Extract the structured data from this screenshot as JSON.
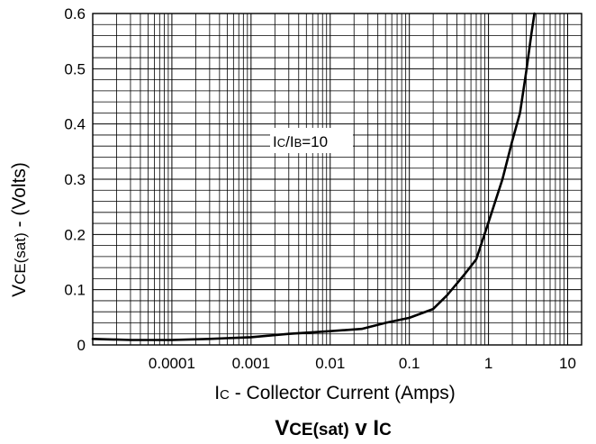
{
  "chart_data": {
    "type": "line",
    "title": {
      "main": "V",
      "sub": "CE(sat)",
      "mid": " v I",
      "tail": "C"
    },
    "xlabel": {
      "pre": "I",
      "sub": "C",
      "post": " - Collector Current (Amps)"
    },
    "ylabel": {
      "pre": "V",
      "sub": "CE(sat)",
      "post": " - (Volts)"
    },
    "annotation": {
      "pre": "I",
      "sub1": "C",
      "mid": "/I",
      "sub2": "B",
      "post": "=10"
    },
    "x_scale": "log",
    "xlim": [
      1e-05,
      15
    ],
    "ylim": [
      0,
      0.6
    ],
    "x_ticks": [
      {
        "value": 0.0001,
        "label": "0.0001"
      },
      {
        "value": 0.001,
        "label": "0.001"
      },
      {
        "value": 0.01,
        "label": "0.01"
      },
      {
        "value": 0.1,
        "label": "0.1"
      },
      {
        "value": 1,
        "label": "1"
      },
      {
        "value": 10,
        "label": "10"
      }
    ],
    "y_ticks": [
      {
        "value": 0,
        "label": "0"
      },
      {
        "value": 0.1,
        "label": "0.1"
      },
      {
        "value": 0.2,
        "label": "0.2"
      },
      {
        "value": 0.3,
        "label": "0.3"
      },
      {
        "value": 0.4,
        "label": "0.4"
      },
      {
        "value": 0.5,
        "label": "0.5"
      },
      {
        "value": 0.6,
        "label": "0.6"
      }
    ],
    "grid": true,
    "series": [
      {
        "x": [
          1e-05,
          3e-05,
          0.0001,
          0.0003,
          0.001,
          0.003,
          0.01,
          0.025,
          0.05,
          0.1,
          0.2,
          0.3,
          0.5,
          0.7,
          1.0,
          1.5,
          2.0,
          2.5,
          3.0,
          3.5,
          3.8
        ],
        "y": [
          0.011,
          0.009,
          0.009,
          0.011,
          0.014,
          0.02,
          0.025,
          0.029,
          0.04,
          0.049,
          0.065,
          0.09,
          0.128,
          0.155,
          0.222,
          0.3,
          0.37,
          0.42,
          0.495,
          0.565,
          0.6
        ]
      }
    ]
  }
}
